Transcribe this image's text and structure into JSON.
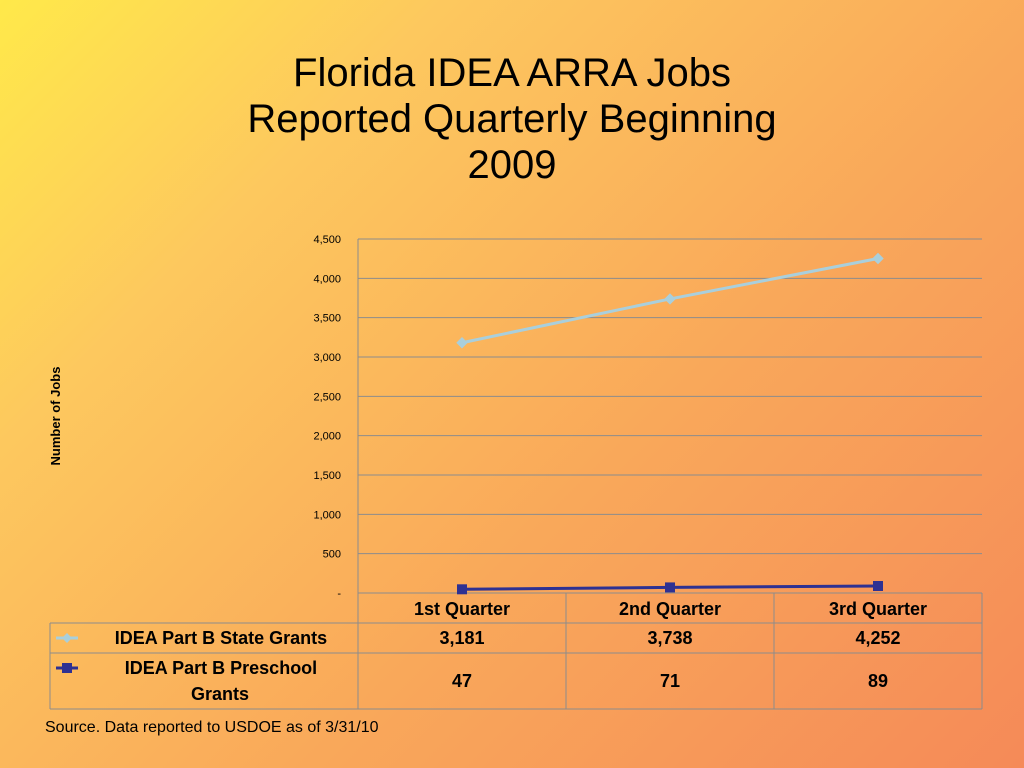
{
  "title_lines": [
    "Florida IDEA ARRA Jobs",
    "Reported Quarterly Beginning",
    "2009"
  ],
  "source": "Source. Data reported to USDOE as of 3/31/10",
  "chart_data": {
    "type": "line",
    "title": "Florida IDEA ARRA Jobs Reported Quarterly Beginning 2009",
    "ylabel": "Number of Jobs",
    "xlabel": "",
    "ylim": [
      0,
      4500
    ],
    "y_ticks": [
      0,
      500,
      1000,
      1500,
      2000,
      2500,
      3000,
      3500,
      4000,
      4500
    ],
    "y_tick_labels": [
      "-",
      "500",
      "1,000",
      "1,500",
      "2,000",
      "2,500",
      "3,000",
      "3,500",
      "4,000",
      "4,500"
    ],
    "grid": true,
    "legend": "data-table-bottom",
    "categories": [
      "1st Quarter",
      "2nd Quarter",
      "3rd Quarter"
    ],
    "series": [
      {
        "name": "IDEA Part B State Grants",
        "name_lines": [
          "IDEA Part B State Grants"
        ],
        "values": [
          3181,
          3738,
          4252
        ],
        "value_labels": [
          "3,181",
          "3,738",
          "4,252"
        ],
        "color": "#a9cfdc",
        "marker": "diamond"
      },
      {
        "name": "IDEA Part B Preschool Grants",
        "name_lines": [
          "IDEA Part B Preschool",
          "Grants"
        ],
        "values": [
          47,
          71,
          89
        ],
        "value_labels": [
          "47",
          "71",
          "89"
        ],
        "color": "#2e3192",
        "marker": "square"
      }
    ]
  }
}
